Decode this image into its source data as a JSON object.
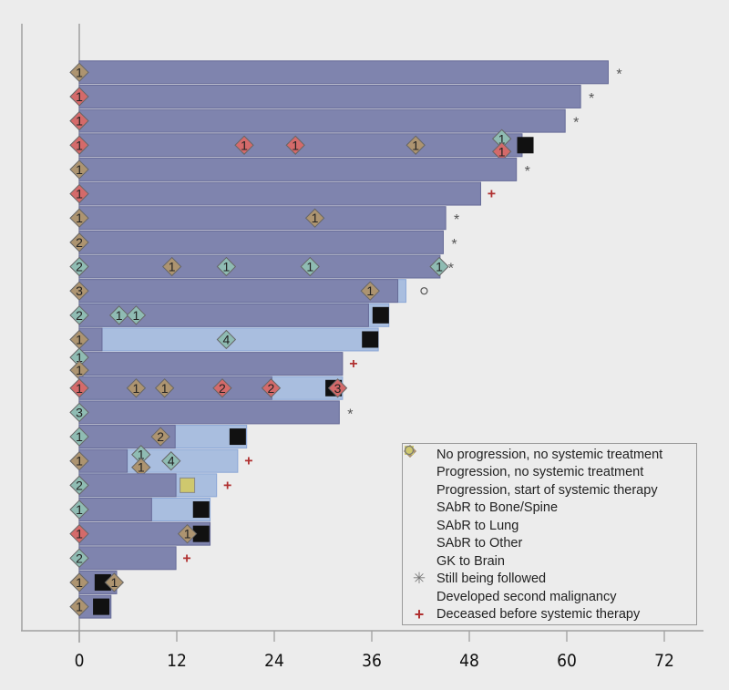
{
  "chart_data": {
    "type": "bar",
    "subtype": "swimmer-plot",
    "title": "",
    "xlabel": "",
    "ylabel": "",
    "xlim": [
      0,
      72
    ],
    "x_ticks": [
      0,
      12,
      24,
      36,
      48,
      60,
      72
    ],
    "x_tick_labels": [
      "0",
      "12",
      "24",
      "36",
      "48",
      "60",
      "72"
    ],
    "legend_position": "bottom-right",
    "colors": {
      "no_prog": "#7f84ae",
      "prog_no_sys": "#a9bedf",
      "prog_sys": "#111111",
      "bone": "#d46a6a",
      "lung": "#8fbcb3",
      "other": "#ad9470",
      "gk": "#cfc86e",
      "followed": "#555555",
      "second": "#555555",
      "deceased": "#b03030"
    },
    "legend": [
      {
        "key": "no_prog",
        "label": "No progression, no systemic treatment",
        "shape": "square"
      },
      {
        "key": "prog_no_sys",
        "label": "Progression, no systemic treatment",
        "shape": "square"
      },
      {
        "key": "prog_sys",
        "label": "Progression, start of systemic therapy",
        "shape": "square"
      },
      {
        "key": "bone",
        "label": "SAbR to Bone/Spine",
        "shape": "diamond"
      },
      {
        "key": "lung",
        "label": "SAbR to Lung",
        "shape": "diamond"
      },
      {
        "key": "other",
        "label": "SAbR to Other",
        "shape": "diamond"
      },
      {
        "key": "gk",
        "label": "GK to Brain",
        "shape": "square"
      },
      {
        "key": "followed",
        "label": "Still being followed",
        "shape": "asterisk"
      },
      {
        "key": "second",
        "label": "Developed second malignancy",
        "shape": "circle"
      },
      {
        "key": "deceased",
        "label": "Deceased before systemic therapy",
        "shape": "plus"
      }
    ],
    "patients": [
      {
        "no_prog": 65.1,
        "prog_end": null,
        "end": "followed",
        "sys": null,
        "gk": [],
        "sabr": [
          {
            "t": 0,
            "type": "other",
            "n": 1
          }
        ]
      },
      {
        "no_prog": 61.7,
        "prog_end": null,
        "end": "followed",
        "sys": null,
        "gk": [],
        "sabr": [
          {
            "t": 0,
            "type": "bone",
            "n": 1
          }
        ]
      },
      {
        "no_prog": 59.8,
        "prog_end": null,
        "end": "followed",
        "sys": null,
        "gk": [],
        "sabr": [
          {
            "t": 0,
            "type": "bone",
            "n": 1
          }
        ]
      },
      {
        "no_prog": 54.5,
        "prog_end": null,
        "end": null,
        "sys": 54.9,
        "gk": [],
        "sabr": [
          {
            "t": 0,
            "type": "bone",
            "n": 1
          },
          {
            "t": 20.3,
            "type": "bone",
            "n": 1
          },
          {
            "t": 26.6,
            "type": "bone",
            "n": 1
          },
          {
            "t": 41.4,
            "type": "other",
            "n": 1
          },
          {
            "t": 52,
            "type": "lung",
            "n": 1,
            "dy": -1
          },
          {
            "t": 52,
            "type": "bone",
            "n": 1,
            "dy": 1
          }
        ]
      },
      {
        "no_prog": 53.8,
        "prog_end": null,
        "end": "followed",
        "sys": null,
        "gk": [],
        "sabr": [
          {
            "t": 0,
            "type": "other",
            "n": 1
          }
        ]
      },
      {
        "no_prog": 49.4,
        "prog_end": null,
        "end": "deceased",
        "sys": null,
        "gk": [],
        "sabr": [
          {
            "t": 0,
            "type": "bone",
            "n": 1
          }
        ]
      },
      {
        "no_prog": 45.1,
        "prog_end": null,
        "end": "followed",
        "sys": null,
        "gk": [],
        "sabr": [
          {
            "t": 0,
            "type": "other",
            "n": 1
          },
          {
            "t": 29,
            "type": "other",
            "n": 1
          }
        ]
      },
      {
        "no_prog": 44.8,
        "prog_end": null,
        "end": "followed",
        "sys": null,
        "gk": [],
        "sabr": [
          {
            "t": 0,
            "type": "other",
            "n": 2
          }
        ]
      },
      {
        "no_prog": 44.4,
        "prog_end": null,
        "end": "followed",
        "sys": null,
        "gk": [],
        "sabr": [
          {
            "t": 0,
            "type": "lung",
            "n": 2
          },
          {
            "t": 11.4,
            "type": "other",
            "n": 1
          },
          {
            "t": 18.1,
            "type": "lung",
            "n": 1
          },
          {
            "t": 28.4,
            "type": "lung",
            "n": 1
          },
          {
            "t": 44.3,
            "type": "lung",
            "n": 1
          }
        ]
      },
      {
        "no_prog": 39.2,
        "prog_end": 40.2,
        "end": "second",
        "sys": null,
        "gk": [],
        "sabr": [
          {
            "t": 0,
            "type": "other",
            "n": 3
          },
          {
            "t": 35.8,
            "type": "other",
            "n": 1
          }
        ]
      },
      {
        "no_prog": 35.6,
        "prog_end": 38.1,
        "end": null,
        "sys": 37.1,
        "gk": [],
        "sabr": [
          {
            "t": 0,
            "type": "lung",
            "n": 2
          },
          {
            "t": 4.9,
            "type": "lung",
            "n": 1
          },
          {
            "t": 7,
            "type": "lung",
            "n": 1
          }
        ]
      },
      {
        "no_prog": 2.8,
        "prog_end": 36.8,
        "end": null,
        "sys": 35.8,
        "gk": [],
        "sabr": [
          {
            "t": 0,
            "type": "other",
            "n": 1
          },
          {
            "t": 18.1,
            "type": "lung",
            "n": 4
          }
        ]
      },
      {
        "no_prog": 32.4,
        "prog_end": null,
        "end": "deceased",
        "sys": null,
        "gk": [],
        "sabr": [
          {
            "t": 0,
            "type": "lung",
            "n": 1,
            "dy": -1
          },
          {
            "t": 0,
            "type": "other",
            "n": 1,
            "dy": 1
          }
        ]
      },
      {
        "no_prog": 23.7,
        "prog_end": 32.4,
        "end": null,
        "sys": 31.3,
        "gk": [],
        "sabr": [
          {
            "t": 0,
            "type": "bone",
            "n": 1
          },
          {
            "t": 7,
            "type": "other",
            "n": 1
          },
          {
            "t": 10.5,
            "type": "other",
            "n": 1
          },
          {
            "t": 17.6,
            "type": "bone",
            "n": 2
          },
          {
            "t": 23.6,
            "type": "bone",
            "n": 2
          },
          {
            "t": 31.8,
            "type": "bone",
            "n": 3
          }
        ]
      },
      {
        "no_prog": 32,
        "prog_end": null,
        "end": "followed",
        "sys": null,
        "gk": [],
        "sabr": [
          {
            "t": 0,
            "type": "lung",
            "n": 3
          }
        ]
      },
      {
        "no_prog": 11.8,
        "prog_end": 20.6,
        "end": null,
        "sys": 19.5,
        "gk": [],
        "sabr": [
          {
            "t": 0,
            "type": "lung",
            "n": 1
          },
          {
            "t": 10,
            "type": "other",
            "n": 2
          }
        ]
      },
      {
        "no_prog": 5.9,
        "prog_end": 19.5,
        "end": "deceased",
        "sys": null,
        "gk": [],
        "sabr": [
          {
            "t": 0,
            "type": "other",
            "n": 1
          },
          {
            "t": 7.6,
            "type": "lung",
            "n": 1,
            "dy": -1
          },
          {
            "t": 7.6,
            "type": "other",
            "n": 1,
            "dy": 1
          },
          {
            "t": 11.3,
            "type": "lung",
            "n": 4
          }
        ]
      },
      {
        "no_prog": 11.9,
        "prog_end": 16.9,
        "end": "deceased",
        "sys": null,
        "gk": [
          13.3
        ],
        "sabr": [
          {
            "t": 0,
            "type": "lung",
            "n": 2
          }
        ]
      },
      {
        "no_prog": 8.9,
        "prog_end": 16.1,
        "end": null,
        "sys": 15,
        "gk": [],
        "sabr": [
          {
            "t": 0,
            "type": "lung",
            "n": 1
          }
        ]
      },
      {
        "no_prog": 16.1,
        "prog_end": null,
        "end": null,
        "sys": 15,
        "gk": [],
        "sabr": [
          {
            "t": 0,
            "type": "bone",
            "n": 1
          },
          {
            "t": 13.3,
            "type": "other",
            "n": 1
          }
        ]
      },
      {
        "no_prog": 11.9,
        "prog_end": null,
        "end": "deceased",
        "sys": null,
        "gk": [],
        "sabr": [
          {
            "t": 0,
            "type": "lung",
            "n": 2
          }
        ]
      },
      {
        "no_prog": 4.6,
        "prog_end": null,
        "end": null,
        "sys": 2.9,
        "gk": [],
        "sabr": [
          {
            "t": 0,
            "type": "other",
            "n": 1
          },
          {
            "t": 4.3,
            "type": "other",
            "n": 1
          }
        ]
      },
      {
        "no_prog": 3.9,
        "prog_end": null,
        "end": null,
        "sys": 2.7,
        "gk": [],
        "sabr": [
          {
            "t": 0,
            "type": "other",
            "n": 1
          }
        ]
      }
    ]
  }
}
